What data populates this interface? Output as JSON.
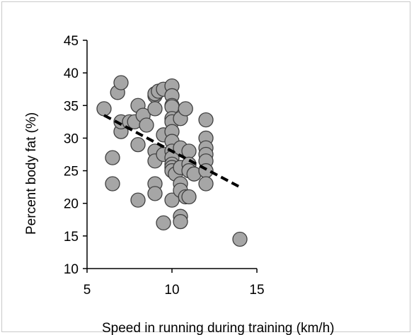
{
  "chart_data": {
    "type": "scatter",
    "xlabel": "Speed in running during training (km/h)",
    "ylabel": "Percent body fat (%)",
    "xlim": [
      5,
      15
    ],
    "ylim": [
      10,
      45
    ],
    "xticks": [
      "5",
      "10",
      "15"
    ],
    "yticks": [
      "45",
      "40",
      "35",
      "30",
      "25",
      "20",
      "15",
      "10"
    ],
    "grid": false,
    "colors": {
      "marker_fill": "#a6a6a6",
      "marker_stroke": "#404040",
      "trend": "#000000"
    },
    "trendline": {
      "style": "dashed",
      "x": [
        6,
        14
      ],
      "y": [
        33.5,
        22.5
      ]
    },
    "points": [
      {
        "x": 6.0,
        "y": 34.5
      },
      {
        "x": 6.5,
        "y": 27.0
      },
      {
        "x": 6.5,
        "y": 23.0
      },
      {
        "x": 6.8,
        "y": 37.0
      },
      {
        "x": 7.0,
        "y": 38.5
      },
      {
        "x": 7.0,
        "y": 31.0
      },
      {
        "x": 7.0,
        "y": 32.5
      },
      {
        "x": 7.5,
        "y": 32.5
      },
      {
        "x": 7.8,
        "y": 32.5
      },
      {
        "x": 8.0,
        "y": 35.0
      },
      {
        "x": 8.0,
        "y": 29.0
      },
      {
        "x": 8.0,
        "y": 20.5
      },
      {
        "x": 8.3,
        "y": 33.5
      },
      {
        "x": 8.5,
        "y": 32.0
      },
      {
        "x": 9.0,
        "y": 36.5
      },
      {
        "x": 9.0,
        "y": 36.8
      },
      {
        "x": 9.0,
        "y": 34.5
      },
      {
        "x": 9.0,
        "y": 28.0
      },
      {
        "x": 9.0,
        "y": 26.5
      },
      {
        "x": 9.0,
        "y": 23.0
      },
      {
        "x": 9.0,
        "y": 21.5
      },
      {
        "x": 9.2,
        "y": 37.2
      },
      {
        "x": 9.5,
        "y": 37.5
      },
      {
        "x": 9.5,
        "y": 30.5
      },
      {
        "x": 9.5,
        "y": 27.5
      },
      {
        "x": 9.5,
        "y": 17.0
      },
      {
        "x": 10.0,
        "y": 38.0
      },
      {
        "x": 10.0,
        "y": 36.5
      },
      {
        "x": 10.0,
        "y": 35.0
      },
      {
        "x": 10.0,
        "y": 34.8
      },
      {
        "x": 10.0,
        "y": 33.0
      },
      {
        "x": 10.0,
        "y": 32.5
      },
      {
        "x": 10.0,
        "y": 31.0
      },
      {
        "x": 10.0,
        "y": 29.5
      },
      {
        "x": 10.0,
        "y": 28.0
      },
      {
        "x": 10.0,
        "y": 27.0
      },
      {
        "x": 10.0,
        "y": 26.0
      },
      {
        "x": 10.0,
        "y": 25.5
      },
      {
        "x": 10.0,
        "y": 25.0
      },
      {
        "x": 10.0,
        "y": 20.5
      },
      {
        "x": 10.2,
        "y": 24.5
      },
      {
        "x": 10.5,
        "y": 33.0
      },
      {
        "x": 10.5,
        "y": 28.5
      },
      {
        "x": 10.5,
        "y": 25.5
      },
      {
        "x": 10.5,
        "y": 23.0
      },
      {
        "x": 10.5,
        "y": 22.0
      },
      {
        "x": 10.5,
        "y": 18.0
      },
      {
        "x": 10.5,
        "y": 17.2
      },
      {
        "x": 10.8,
        "y": 21.0
      },
      {
        "x": 10.8,
        "y": 34.5
      },
      {
        "x": 11.0,
        "y": 28.0
      },
      {
        "x": 11.0,
        "y": 26.0
      },
      {
        "x": 11.0,
        "y": 25.0
      },
      {
        "x": 11.0,
        "y": 21.0
      },
      {
        "x": 11.3,
        "y": 24.5
      },
      {
        "x": 12.0,
        "y": 32.8
      },
      {
        "x": 12.0,
        "y": 30.0
      },
      {
        "x": 12.0,
        "y": 28.5
      },
      {
        "x": 12.0,
        "y": 27.5
      },
      {
        "x": 12.0,
        "y": 26.5
      },
      {
        "x": 12.0,
        "y": 25.0
      },
      {
        "x": 12.0,
        "y": 23.0
      },
      {
        "x": 14.0,
        "y": 14.5
      }
    ]
  }
}
